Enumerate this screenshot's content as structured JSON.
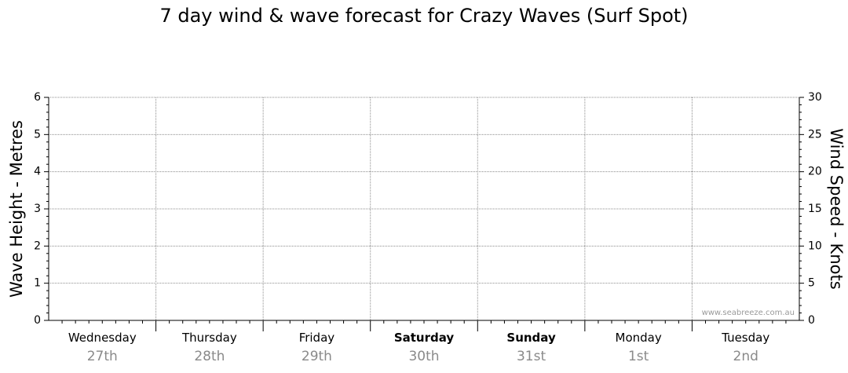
{
  "chart_data": {
    "type": "line",
    "title": "7 day wind & wave forecast for Crazy Waves (Surf Spot)",
    "ylabel": "Wave Height - Metres",
    "ylabel_right": "Wind Speed - Knots",
    "ylim": [
      0,
      6
    ],
    "ylim_right": [
      0,
      30
    ],
    "yticks": [
      "0",
      "1",
      "2",
      "3",
      "4",
      "5",
      "6"
    ],
    "yticks_right": [
      "0",
      "5",
      "10",
      "15",
      "20",
      "25",
      "30"
    ],
    "days": [
      {
        "name": "Wednesday",
        "date": "27th",
        "bold": false
      },
      {
        "name": "Thursday",
        "date": "28th",
        "bold": false
      },
      {
        "name": "Friday",
        "date": "29th",
        "bold": false
      },
      {
        "name": "Saturday",
        "date": "30th",
        "bold": true
      },
      {
        "name": "Sunday",
        "date": "31st",
        "bold": true
      },
      {
        "name": "Monday",
        "date": "1st",
        "bold": false
      },
      {
        "name": "Tuesday",
        "date": "2nd",
        "bold": false
      }
    ],
    "series": [],
    "grid": true,
    "watermark": "www.seabreeze.com.au"
  }
}
